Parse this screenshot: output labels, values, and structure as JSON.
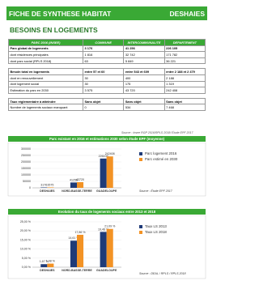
{
  "header": {
    "title": "FICHE DE SYNTHESE HABITAT",
    "commune": "DESHAIES"
  },
  "section_title": "BESOINS EN LOGEMENTS",
  "table": {
    "header": [
      "PARC 2016 (INSEE)",
      "COMMUNE",
      "INTERCOMMUNALITE",
      "DEPARTEMENT"
    ],
    "groups": [
      [
        [
          "Parc global de logements",
          "3 176",
          "41 256",
          "226 105"
        ],
        [
          "dont résidences principales",
          "1 816",
          "32 742",
          "171 782"
        ],
        [
          "dont parc social (RPLS 2018)",
          "63",
          "5 849",
          "36 221"
        ]
      ],
      [
        [
          "Besoin total en logements",
          "entre 57 et 60",
          "entre 543 et 609",
          "entre 2 188 et 2 479"
        ],
        [
          "dont en renouvellement",
          "30",
          "400",
          "2 188"
        ],
        [
          "dont logement social",
          "30",
          "175",
          "1 319"
        ],
        [
          "Estimation du parc en 2030",
          "3 575",
          "43 720",
          "242 408"
        ]
      ],
      [
        [
          "Taux réglementaire à atteindre",
          "Sans objet",
          "Sans objet",
          "Sans objet"
        ],
        [
          "Nombre de logements sociaux manquant",
          "0",
          "534",
          "7 468"
        ]
      ]
    ],
    "source": "Source : Insee RGP 2016/RPLS 2018/ Étude EPF 2017"
  },
  "chart_data": [
    {
      "type": "bar",
      "title": "Parc existant en 2016 et estimations 2030 selon étude EPF (moyenne)",
      "categories": [
        "DESHAIES",
        "NORD-BASSE-TERRE",
        "GUADELOUPE"
      ],
      "series": [
        {
          "name": "Parc logement 2016",
          "color": "#1f3b78",
          "values": [
            3176,
            41256,
            226105
          ]
        },
        {
          "name": "Parc estimé en 2030",
          "color": "#f39325",
          "values": [
            3575,
            43720,
            242408
          ]
        }
      ],
      "ylim": [
        0,
        300000
      ],
      "yticks": [
        0,
        50000,
        100000,
        150000,
        200000,
        250000,
        300000
      ],
      "source": "Source : Étude EPF 2017"
    },
    {
      "type": "bar",
      "title": "Evolution du taux de logements sociaux entre 2013 et 2018",
      "categories": [
        "DESHAIES",
        "NORD-BASSE-TERRE",
        "GUADELOUPE"
      ],
      "series": [
        {
          "name": "Taux LS 2013",
          "color": "#1f3b78",
          "values": [
            1.67,
            14.61,
            19.46
          ],
          "value_labels": [
            "1,67 %",
            "14,61 %",
            "19,46 %"
          ]
        },
        {
          "name": "Taux LS 2018",
          "color": "#f39325",
          "values": [
            1.98,
            17.86,
            21.09
          ],
          "value_labels": [
            "1,98 %",
            "17,86 %",
            "21,09 %"
          ]
        }
      ],
      "ylim": [
        0,
        25
      ],
      "yticks": [
        {
          "value": 0,
          "label": "0,00 %"
        },
        {
          "value": 5,
          "label": "5,00 %"
        },
        {
          "value": 10,
          "label": "10,00 %"
        },
        {
          "value": 15,
          "label": "15,00 %"
        },
        {
          "value": 20,
          "label": "20,00 %"
        },
        {
          "value": 25,
          "label": "25,00 %"
        }
      ],
      "source": "Source : DEAL / RPLS / RPLS 2018"
    }
  ]
}
